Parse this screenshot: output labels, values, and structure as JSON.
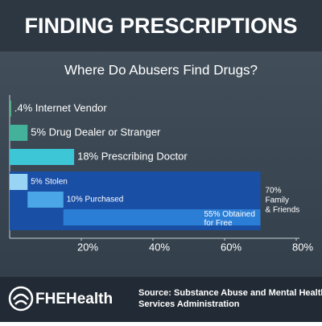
{
  "chart_data": {
    "type": "bar",
    "title": "FINDING PRESCRIPTIONS",
    "subtitle": "Where Do Abusers Find Drugs?",
    "categories": [
      ".4% Internet Vendor",
      "5% Drug Dealer or Stranger",
      "18% Prescribing Doctor"
    ],
    "values": [
      0.4,
      5,
      18
    ],
    "colors": [
      "#5cb889",
      "#44b19a",
      "#3cc6d6"
    ],
    "group": {
      "label_lines": [
        "70%",
        "Family",
        "& Friends"
      ],
      "value": 70,
      "color": "#1a4fa6",
      "segments": [
        {
          "label_lines": [
            "5%  Stolen"
          ],
          "value": 5,
          "color": "#9ad4f4"
        },
        {
          "label_lines": [
            "10% Purchased"
          ],
          "value": 10,
          "color": "#4aa6e6"
        },
        {
          "label_lines": [
            "55% Obtained",
            "for Free"
          ],
          "value": 55,
          "color": "#2b7ed6"
        }
      ]
    },
    "xlim": [
      0,
      80
    ],
    "xticks": [
      {
        "value": 20,
        "label": "20%"
      },
      {
        "value": 40,
        "label": "40%"
      },
      {
        "value": 60,
        "label": "60%"
      },
      {
        "value": 80,
        "label": "80%"
      }
    ]
  },
  "footer": {
    "brand": "FHEHealth",
    "source_lines": [
      "Source: Substance Abuse and Mental Health",
      "Services Administration"
    ]
  }
}
